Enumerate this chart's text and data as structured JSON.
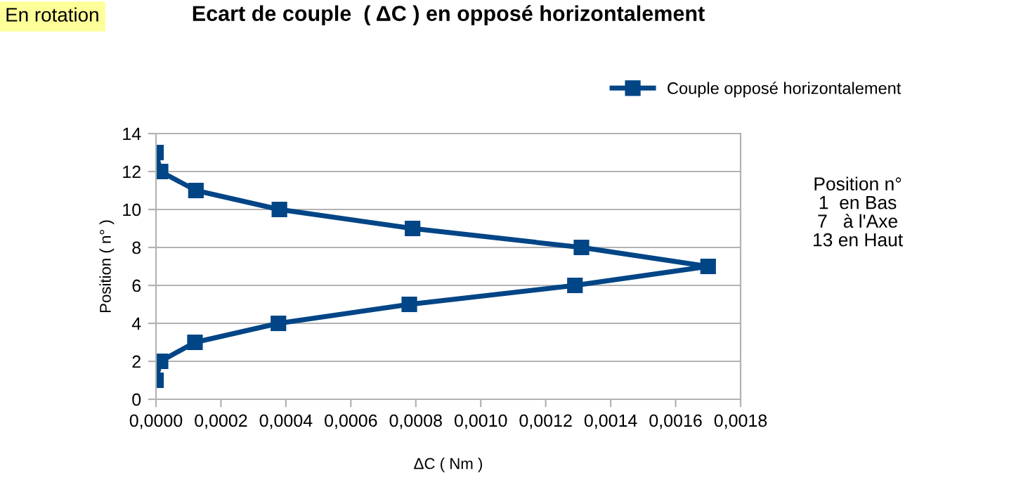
{
  "chart_data": {
    "type": "line",
    "title": "Ecart de couple  ( ΔC ) en opposé horizontalement",
    "xlabel": "ΔC ( Nm )",
    "ylabel": "Position ( n° )",
    "series": [
      {
        "name": "Couple opposé horizontalement",
        "color": "#004586",
        "x": [
          0,
          1.4e-05,
          0.00012,
          0.000377,
          0.00078,
          0.00129,
          0.0017,
          0.00131,
          0.00079,
          0.00038,
          0.000123,
          1.4e-05,
          0
        ],
        "values": [
          1,
          2,
          3,
          4,
          5,
          6,
          7,
          8,
          9,
          10,
          11,
          12,
          13
        ]
      }
    ],
    "xlim": [
      0,
      0.0018
    ],
    "xticks": [
      {
        "value": 0,
        "label": "0,0000"
      },
      {
        "value": 0.0002,
        "label": "0,0002"
      },
      {
        "value": 0.0004,
        "label": "0,0004"
      },
      {
        "value": 0.0006,
        "label": "0,0006"
      },
      {
        "value": 0.0008,
        "label": "0,0008"
      },
      {
        "value": 0.001,
        "label": "0,0010"
      },
      {
        "value": 0.0012,
        "label": "0,0012"
      },
      {
        "value": 0.0014,
        "label": "0,0014"
      },
      {
        "value": 0.0016,
        "label": "0,0016"
      },
      {
        "value": 0.0018,
        "label": "0,0018"
      }
    ],
    "ylim": [
      0,
      14
    ],
    "yticks": [
      0,
      2,
      4,
      6,
      8,
      10,
      12,
      14
    ],
    "grid": "y",
    "legend": "top right",
    "marker": "square",
    "line_style": "solid",
    "annotations": [
      "En rotation",
      "Position n°\n1  en Bas\n7   à l'Axe\n13 en Haut"
    ]
  }
}
